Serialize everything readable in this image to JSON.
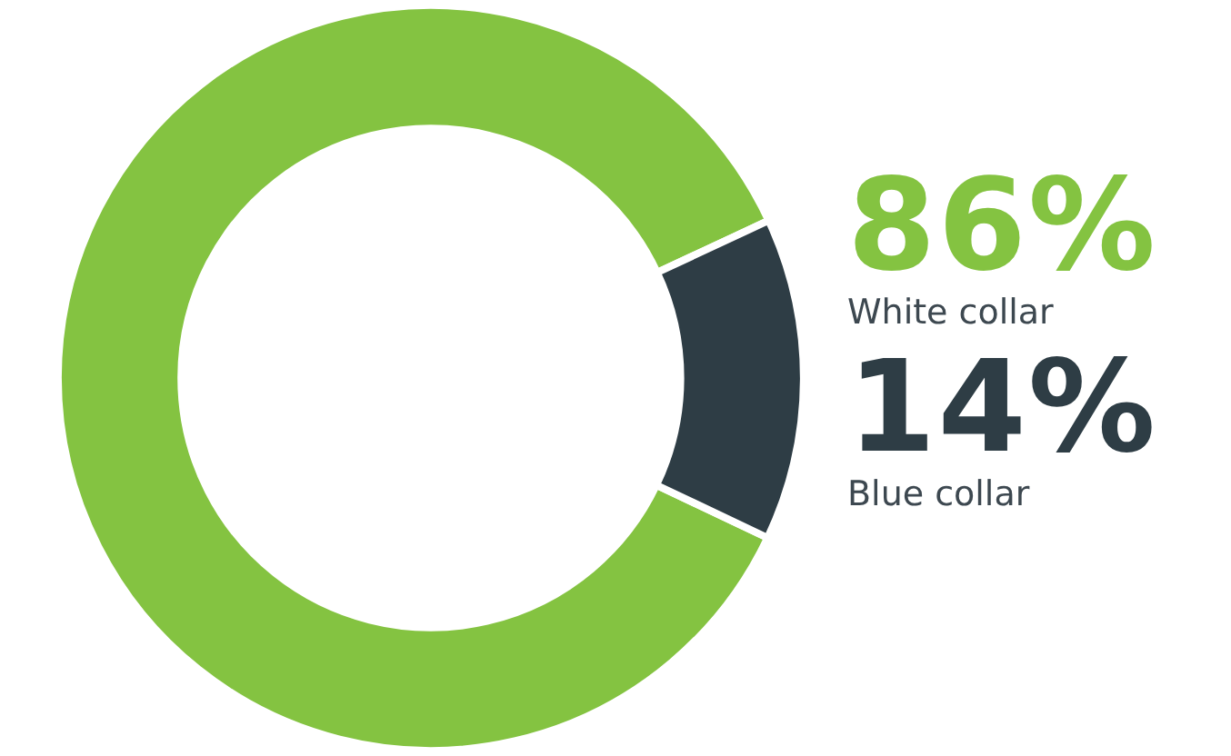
{
  "chart_data": {
    "type": "donut",
    "categories": [
      "White collar",
      "Blue collar"
    ],
    "values": [
      86,
      14
    ],
    "colors": [
      "#84c341",
      "#2e3d45"
    ],
    "value_labels": [
      "86%",
      "14%"
    ],
    "legend": false
  }
}
